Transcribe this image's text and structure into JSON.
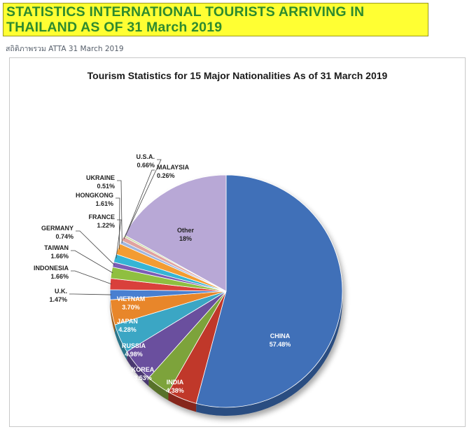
{
  "banner": {
    "line1": "STATISTICS INTERNATIONAL TOURISTS ARRIVING IN",
    "line2": "THAILAND AS OF 31 March 2019"
  },
  "caption": "สถิติภาพรวม ATTA 31 March 2019",
  "chart_data": {
    "type": "pie",
    "title": "Tourism Statistics for 15 Major Nationalities As of 31 March 2019",
    "unit": "%",
    "slices": [
      {
        "label": "CHINA",
        "value": 57.48,
        "display": "57.48%",
        "color": "#3f6fb8"
      },
      {
        "label": "INDIA",
        "value": 4.38,
        "display": "4.38%",
        "color": "#c0392b"
      },
      {
        "label": "KOREA",
        "value": 3.53,
        "display": "3.53%",
        "color": "#7da33b"
      },
      {
        "label": "RUSSIA",
        "value": 4.98,
        "display": "4.98%",
        "color": "#6a4f9e"
      },
      {
        "label": "JAPAN",
        "value": 4.28,
        "display": "4.28%",
        "color": "#3aa6c4"
      },
      {
        "label": "VIETNAM",
        "value": 3.7,
        "display": "3.70%",
        "color": "#e8862a"
      },
      {
        "label": "U.K.",
        "value": 1.47,
        "display": "1.47%",
        "color": "#4a7fd0"
      },
      {
        "label": "INDONESIA",
        "value": 1.66,
        "display": "1.66%",
        "color": "#d9413a"
      },
      {
        "label": "TAIWAN",
        "value": 1.66,
        "display": "1.66%",
        "color": "#8fbf3f"
      },
      {
        "label": "GERMANY",
        "value": 0.74,
        "display": "0.74%",
        "color": "#7b5bb5"
      },
      {
        "label": "FRANCE",
        "value": 1.22,
        "display": "1.22%",
        "color": "#35b5d5"
      },
      {
        "label": "HONGKONG",
        "value": 1.61,
        "display": "1.61%",
        "color": "#f39c32"
      },
      {
        "label": "UKRAINE",
        "value": 0.51,
        "display": "0.51%",
        "color": "#9fb6df"
      },
      {
        "label": "U.S.A.",
        "value": 0.66,
        "display": "0.66%",
        "color": "#e0a3a0"
      },
      {
        "label": "MALAYSIA",
        "value": 0.26,
        "display": "0.26%",
        "color": "#c9dca0"
      },
      {
        "label": "Other",
        "value": 18,
        "display": "18%",
        "color": "#b8a8d6"
      }
    ]
  }
}
